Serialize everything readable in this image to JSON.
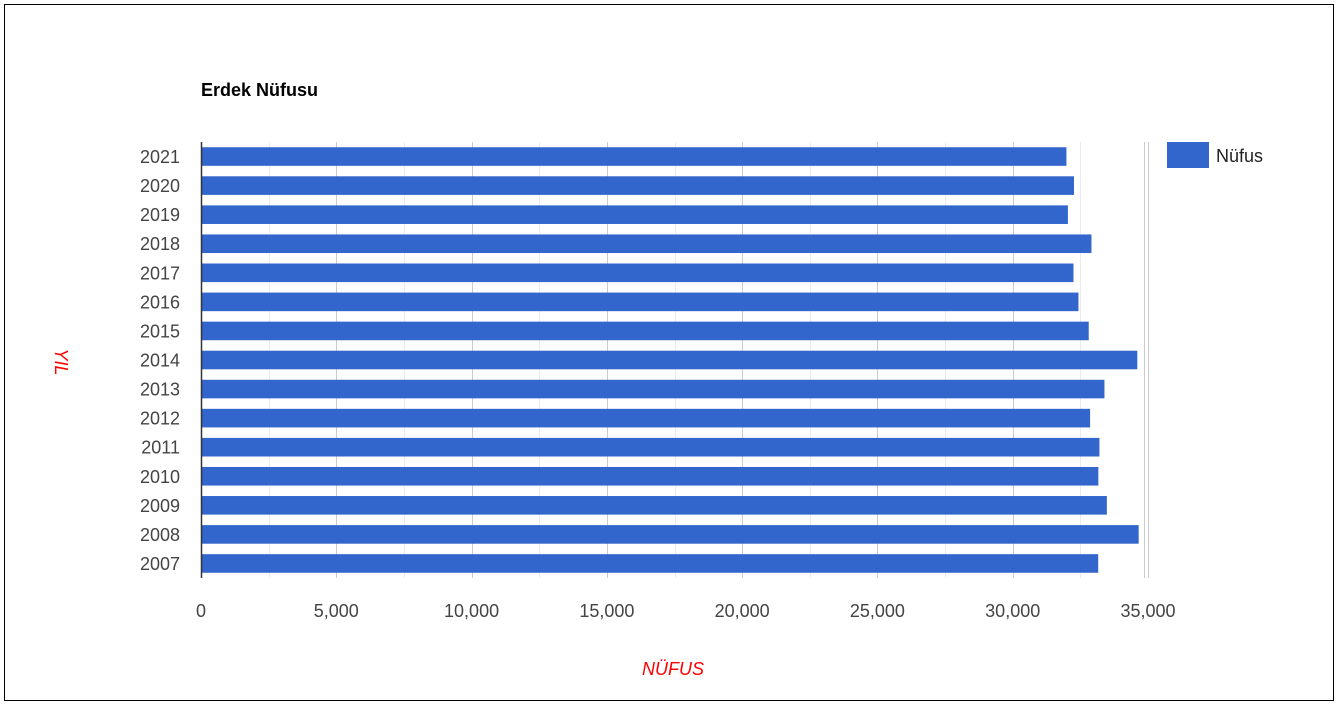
{
  "chart_data": {
    "type": "bar",
    "orientation": "horizontal",
    "title": "Erdek Nüfusu",
    "xlabel": "NÜFUS",
    "ylabel": "YIL",
    "categories": [
      "2021",
      "2020",
      "2019",
      "2018",
      "2017",
      "2016",
      "2015",
      "2014",
      "2013",
      "2012",
      "2011",
      "2010",
      "2009",
      "2008",
      "2007"
    ],
    "series": [
      {
        "name": "Nüfus",
        "values": [
          31985,
          32265,
          32040,
          32910,
          32245,
          32430,
          32810,
          34605,
          33390,
          32860,
          33205,
          33165,
          33480,
          34655,
          33160
        ],
        "color": "#3366cc"
      }
    ],
    "xticks": [
      "0",
      "5,000",
      "10,000",
      "15,000",
      "20,000",
      "25,000",
      "30,000",
      "35,000"
    ],
    "xlim": [
      0,
      35000
    ],
    "grid": true,
    "legend_position": "top-right"
  }
}
